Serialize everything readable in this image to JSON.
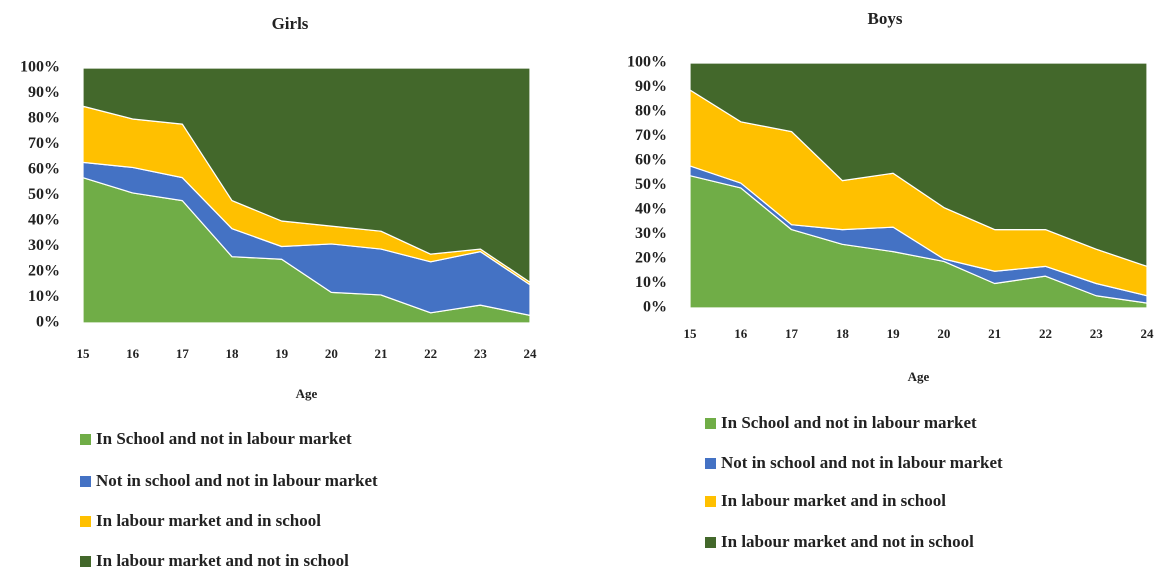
{
  "chart_data": [
    {
      "type": "stacked_area",
      "title": "Girls",
      "x_label": "Age",
      "categories": [
        "15",
        "16",
        "17",
        "18",
        "19",
        "20",
        "21",
        "22",
        "23",
        "24"
      ],
      "ylim": [
        0,
        100
      ],
      "yticks": [
        {
          "value": 0,
          "label": "0%"
        },
        {
          "value": 10,
          "label": "10%"
        },
        {
          "value": 20,
          "label": "20%"
        },
        {
          "value": 30,
          "label": "30%"
        },
        {
          "value": 40,
          "label": "40%"
        },
        {
          "value": 50,
          "label": "50%"
        },
        {
          "value": 60,
          "label": "60%"
        },
        {
          "value": 70,
          "label": "70%"
        },
        {
          "value": 80,
          "label": "80%"
        },
        {
          "value": 90,
          "label": "90%"
        },
        {
          "value": 100,
          "label": "100%"
        }
      ],
      "series": [
        {
          "name": "In School and not in labour market",
          "color": "#70ad47",
          "values": [
            57,
            51,
            48,
            26,
            25,
            12,
            11,
            4,
            7,
            3
          ]
        },
        {
          "name": "Not in school and not in labour market",
          "color": "#4472c4",
          "values": [
            6,
            10,
            9,
            11,
            5,
            19,
            18,
            20,
            21,
            12
          ]
        },
        {
          "name": "In labour market and in school",
          "color": "#ffc000",
          "values": [
            22,
            19,
            21,
            11,
            10,
            7,
            7,
            3,
            1,
            1
          ]
        },
        {
          "name": "In labour market and not in school",
          "color": "#43682b",
          "values": [
            15,
            20,
            22,
            52,
            60,
            62,
            64,
            73,
            71,
            84
          ]
        }
      ]
    },
    {
      "type": "stacked_area",
      "title": "Boys",
      "x_label": "Age",
      "categories": [
        "15",
        "16",
        "17",
        "18",
        "19",
        "20",
        "21",
        "22",
        "23",
        "24"
      ],
      "ylim": [
        0,
        100
      ],
      "yticks": [
        {
          "value": 0,
          "label": "0%"
        },
        {
          "value": 10,
          "label": "10%"
        },
        {
          "value": 20,
          "label": "20%"
        },
        {
          "value": 30,
          "label": "30%"
        },
        {
          "value": 40,
          "label": "40%"
        },
        {
          "value": 50,
          "label": "50%"
        },
        {
          "value": 60,
          "label": "60%"
        },
        {
          "value": 70,
          "label": "70%"
        },
        {
          "value": 80,
          "label": "80%"
        },
        {
          "value": 90,
          "label": "90%"
        },
        {
          "value": 100,
          "label": "100%"
        }
      ],
      "series": [
        {
          "name": "In School and not in labour market",
          "color": "#70ad47",
          "values": [
            54,
            49,
            32,
            26,
            23,
            19,
            10,
            13,
            5,
            2
          ]
        },
        {
          "name": "Not in school and not in labour market",
          "color": "#4472c4",
          "values": [
            4,
            2,
            2,
            6,
            10,
            1,
            5,
            4,
            5,
            3
          ]
        },
        {
          "name": "In labour market and in school",
          "color": "#ffc000",
          "values": [
            31,
            25,
            38,
            20,
            22,
            21,
            17,
            15,
            14,
            12
          ]
        },
        {
          "name": "In labour market and not in school",
          "color": "#43682b",
          "values": [
            11,
            24,
            28,
            48,
            45,
            59,
            68,
            68,
            76,
            83
          ]
        }
      ]
    }
  ]
}
